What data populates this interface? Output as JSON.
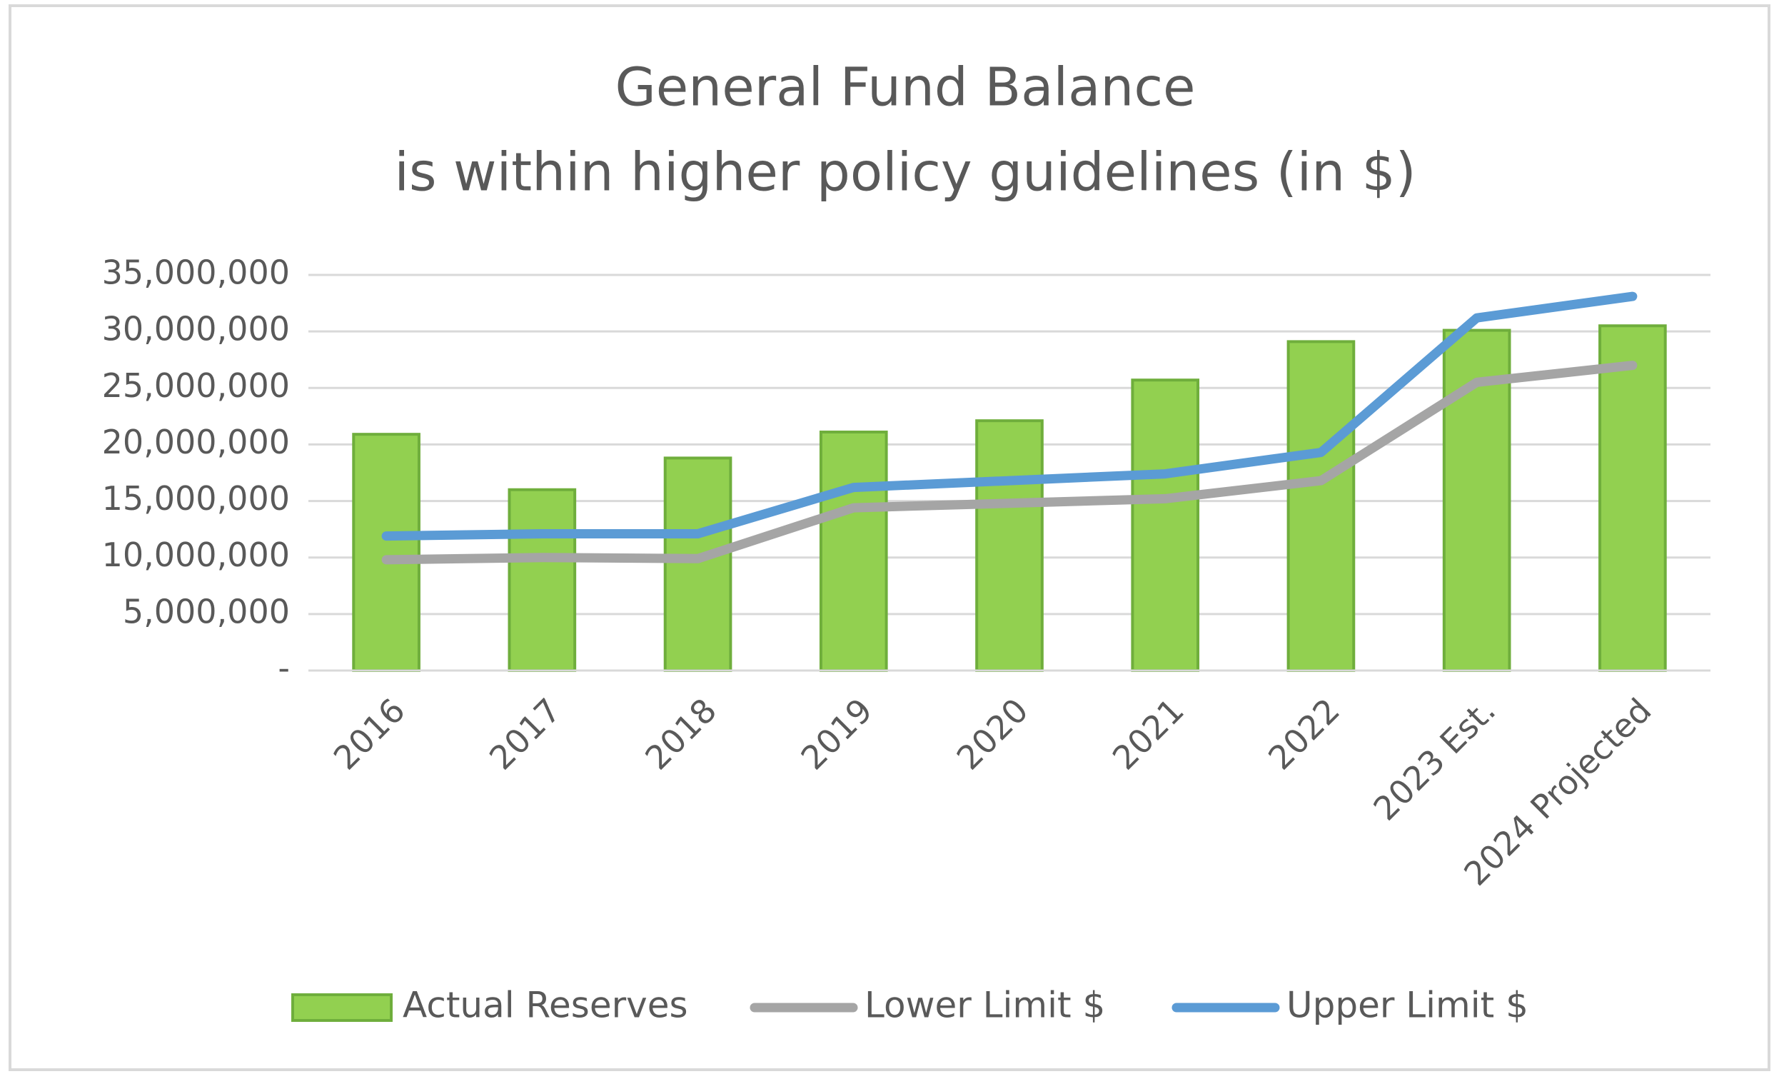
{
  "chart_data": {
    "type": "bar-line",
    "title": [
      "General Fund Balance",
      "is within higher policy guidelines (in $)"
    ],
    "categories": [
      "2016",
      "2017",
      "2018",
      "2019",
      "2020",
      "2021",
      "2022",
      "2023 Est.",
      "2024 Projected"
    ],
    "series": [
      {
        "name": "Actual Reserves",
        "type": "bar",
        "color": "#92d050",
        "values": [
          20900000,
          16000000,
          18800000,
          21100000,
          22100000,
          25700000,
          29100000,
          30100000,
          30500000
        ]
      },
      {
        "name": "Lower Limit $",
        "type": "line",
        "color": "#a5a5a5",
        "values": [
          9800000,
          10000000,
          9900000,
          14400000,
          14800000,
          15200000,
          16800000,
          25500000,
          27000000
        ]
      },
      {
        "name": "Upper Limit $",
        "type": "line",
        "color": "#5b9bd5",
        "values": [
          11900000,
          12100000,
          12100000,
          16200000,
          16800000,
          17400000,
          19300000,
          31200000,
          33100000
        ]
      }
    ],
    "ylim": [
      0,
      35000000
    ],
    "yticks": [
      {
        "value": 0,
        "label": "-"
      },
      {
        "value": 5000000,
        "label": "5,000,000"
      },
      {
        "value": 10000000,
        "label": "10,000,000"
      },
      {
        "value": 15000000,
        "label": "15,000,000"
      },
      {
        "value": 20000000,
        "label": "20,000,000"
      },
      {
        "value": 25000000,
        "label": "25,000,000"
      },
      {
        "value": 30000000,
        "label": "30,000,000"
      },
      {
        "value": 35000000,
        "label": "35,000,000"
      }
    ],
    "grid": true,
    "legend": "bottom"
  }
}
